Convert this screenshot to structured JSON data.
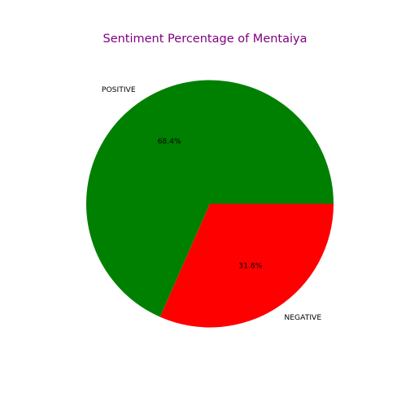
{
  "chart_data": {
    "type": "pie",
    "title": "Sentiment Percentage of Mentaiya",
    "title_color": "#800080",
    "slices": [
      {
        "label": "POSITIVE",
        "value": 68.4,
        "pct_label": "68.4%",
        "color": "#008000"
      },
      {
        "label": "NEGATIVE",
        "value": 31.6,
        "pct_label": "31.6%",
        "color": "#ff0000"
      }
    ],
    "start_angle_deg": 0,
    "direction": "counterclockwise"
  }
}
